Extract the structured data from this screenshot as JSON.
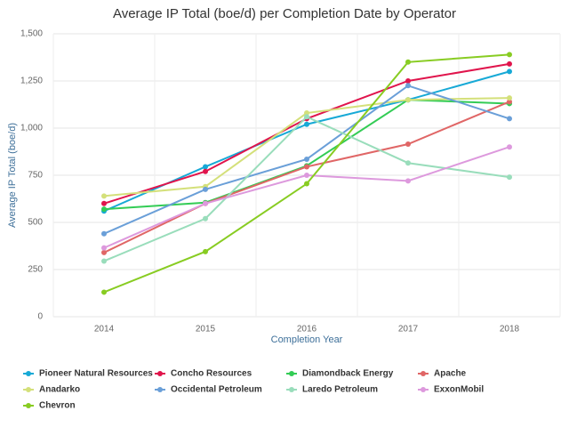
{
  "chart_data": {
    "type": "line",
    "title": "Average IP Total (boe/d) per Completion Date by Operator",
    "x_label": "Completion Year",
    "y_label": "Average IP Total (boe/d)",
    "categories": [
      "2014",
      "2015",
      "2016",
      "2017",
      "2018"
    ],
    "ylim": [
      0,
      1500
    ],
    "yticks": [
      0,
      250,
      500,
      750,
      {
        "value": 1000,
        "label": "1,000"
      },
      {
        "value": 1250,
        "label": "1,250"
      },
      {
        "value": 1500,
        "label": "1,500"
      }
    ],
    "grid": true,
    "series": [
      {
        "name": "Pioneer Natural Resources",
        "color": "#17a9d6",
        "values": [
          560,
          795,
          1020,
          1150,
          1300
        ]
      },
      {
        "name": "Concho Resources",
        "color": "#e0144c",
        "values": [
          600,
          770,
          1050,
          1250,
          1340
        ]
      },
      {
        "name": "Diamondback Energy",
        "color": "#33cc55",
        "values": [
          570,
          605,
          800,
          1150,
          1130
        ]
      },
      {
        "name": "Apache",
        "color": "#e06666",
        "values": [
          340,
          600,
          795,
          915,
          1140
        ]
      },
      {
        "name": "Anadarko",
        "color": "#d4e07a",
        "values": [
          640,
          690,
          1080,
          1150,
          1160
        ]
      },
      {
        "name": "Occidental Petroleum",
        "color": "#6a9fd8",
        "values": [
          440,
          675,
          835,
          1225,
          1050
        ]
      },
      {
        "name": "Laredo Petroleum",
        "color": "#99ddbb",
        "values": [
          295,
          520,
          1060,
          815,
          740
        ]
      },
      {
        "name": "ExxonMobil",
        "color": "#dd99dd",
        "values": [
          365,
          600,
          750,
          720,
          900
        ]
      },
      {
        "name": "Chevron",
        "color": "#88cc22",
        "values": [
          130,
          345,
          705,
          1350,
          1390
        ]
      }
    ]
  }
}
